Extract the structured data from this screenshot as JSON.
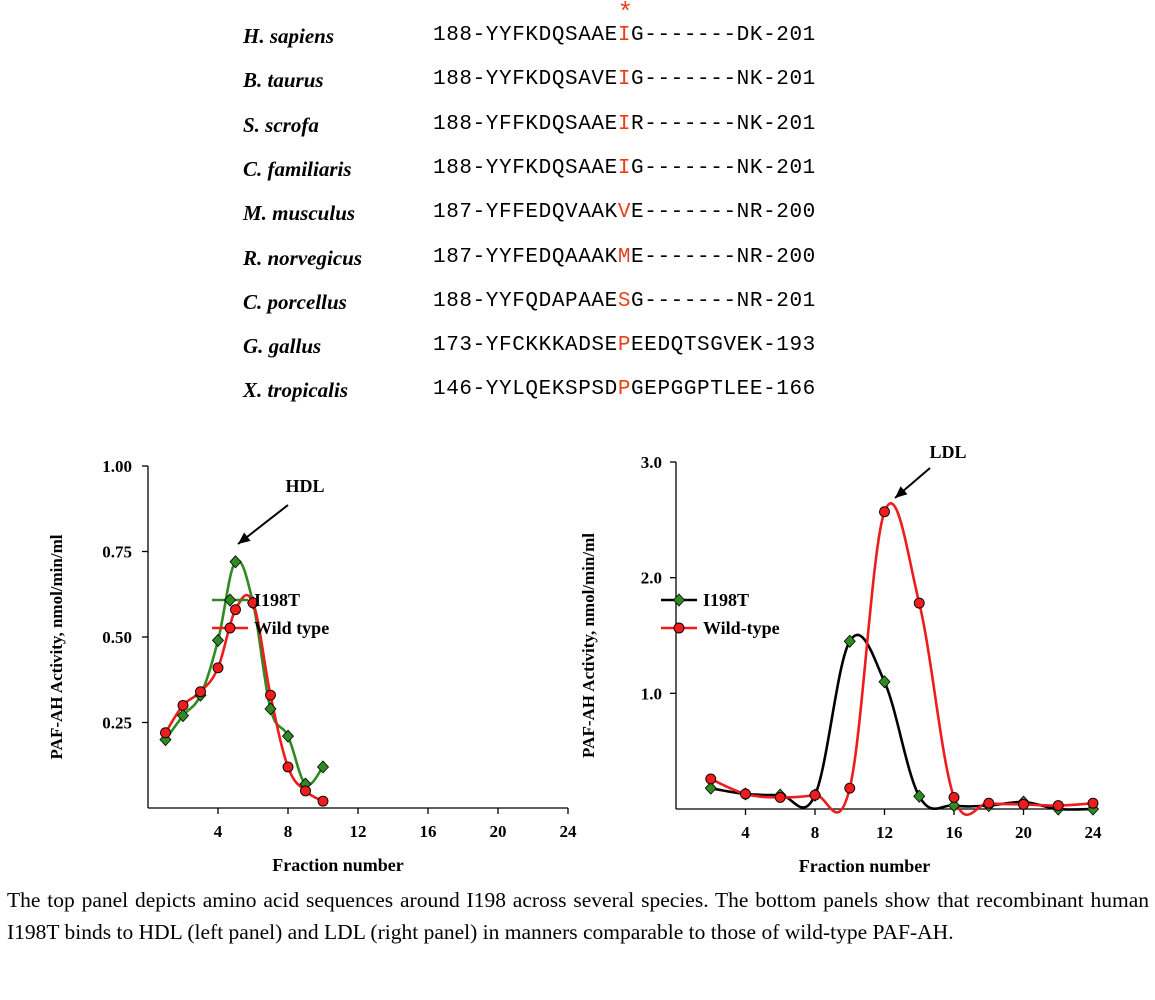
{
  "alignment": {
    "marker": "*",
    "rows": [
      {
        "species": "H. sapiens",
        "prefix": "188-YYFKDQSAAE",
        "residue": "I",
        "suffix": "G-------DK-201"
      },
      {
        "species": "B. taurus",
        "prefix": "188-YYFKDQSAVE",
        "residue": "I",
        "suffix": "G-------NK-201"
      },
      {
        "species": "S. scrofa",
        "prefix": "188-YFFKDQSAAE",
        "residue": "I",
        "suffix": "R-------NK-201"
      },
      {
        "species": "C. familiaris",
        "prefix": "188-YYFKDQSAAE",
        "residue": "I",
        "suffix": "G-------NK-201"
      },
      {
        "species": "M. musculus",
        "prefix": "187-YFFEDQVAAK",
        "residue": "V",
        "suffix": "E-------NR-200"
      },
      {
        "species": "R. norvegicus",
        "prefix": "187-YYFEDQAAAK",
        "residue": "M",
        "suffix": "E-------NR-200"
      },
      {
        "species": "C. porcellus",
        "prefix": "188-YYFQDAPAAE",
        "residue": "S",
        "suffix": "G-------NR-201"
      },
      {
        "species": "G. gallus",
        "prefix": "173-YFCKKKADSE",
        "residue": "P",
        "suffix": "EEDQTSGVEK-193"
      },
      {
        "species": "X. tropicalis",
        "prefix": "146-YYLQEKSPSD",
        "residue": "P",
        "suffix": "GEPGGPTLEE-166"
      }
    ]
  },
  "colors": {
    "highlight": "#e8401a",
    "green": "#2e8b22",
    "red": "#ee1c1c",
    "black": "#000000"
  },
  "chart_data": [
    {
      "type": "line",
      "title": "",
      "xlabel": "Fraction number",
      "ylabel": "PAF-AH Activity, nmol/min/ml",
      "xlim": [
        0,
        24
      ],
      "ylim": [
        0,
        1.0
      ],
      "xticks": [
        4,
        8,
        12,
        16,
        20,
        24
      ],
      "yticks": [
        0.25,
        0.5,
        0.75,
        1.0
      ],
      "ytick_labels": [
        "0.25",
        "0.50",
        "0.75",
        "1.00"
      ],
      "annotation": "HDL",
      "series": [
        {
          "name": "I198T",
          "color": "#2e8b22",
          "marker": "diamond",
          "x": [
            1,
            2,
            3,
            4,
            5,
            6,
            7,
            8,
            9,
            10
          ],
          "y": [
            0.2,
            0.27,
            0.33,
            0.49,
            0.72,
            0.6,
            0.29,
            0.21,
            0.07,
            0.12
          ]
        },
        {
          "name": "Wild type",
          "color": "#ee1c1c",
          "marker": "circle",
          "x": [
            1,
            2,
            3,
            4,
            5,
            6,
            7,
            8,
            9,
            10
          ],
          "y": [
            0.22,
            0.3,
            0.34,
            0.41,
            0.58,
            0.6,
            0.33,
            0.12,
            0.05,
            0.02
          ]
        }
      ]
    },
    {
      "type": "line",
      "title": "",
      "xlabel": "Fraction number",
      "ylabel": "PAF-AH Activity, nmol/min/ml",
      "xlim": [
        0,
        24
      ],
      "ylim": [
        0,
        3.0
      ],
      "xticks": [
        4,
        8,
        12,
        16,
        20,
        24
      ],
      "yticks": [
        1.0,
        2.0,
        3.0
      ],
      "ytick_labels": [
        "1.0",
        "2.0",
        "3.0"
      ],
      "annotation": "LDL",
      "series": [
        {
          "name": "I198T",
          "color": "#000000",
          "marker": "diamond",
          "x": [
            2,
            4,
            6,
            8,
            10,
            12,
            14,
            16,
            18,
            20,
            22,
            24
          ],
          "y": [
            0.18,
            0.13,
            0.12,
            0.12,
            1.45,
            1.1,
            0.11,
            0.03,
            0.03,
            0.06,
            0.0,
            0.0
          ]
        },
        {
          "name": "Wild-type",
          "color": "#ee1c1c",
          "marker": "circle",
          "x": [
            2,
            4,
            6,
            8,
            10,
            12,
            14,
            16,
            18,
            20,
            22,
            24
          ],
          "y": [
            0.26,
            0.13,
            0.1,
            0.12,
            0.18,
            2.57,
            1.78,
            0.1,
            0.05,
            0.04,
            0.03,
            0.05
          ]
        }
      ]
    }
  ],
  "caption": "The top panel depicts amino acid sequences around I198 across several species. The bottom panels show that recombinant human I198T binds to HDL (left panel) and LDL (right panel) in manners comparable to those of wild-type PAF-AH."
}
